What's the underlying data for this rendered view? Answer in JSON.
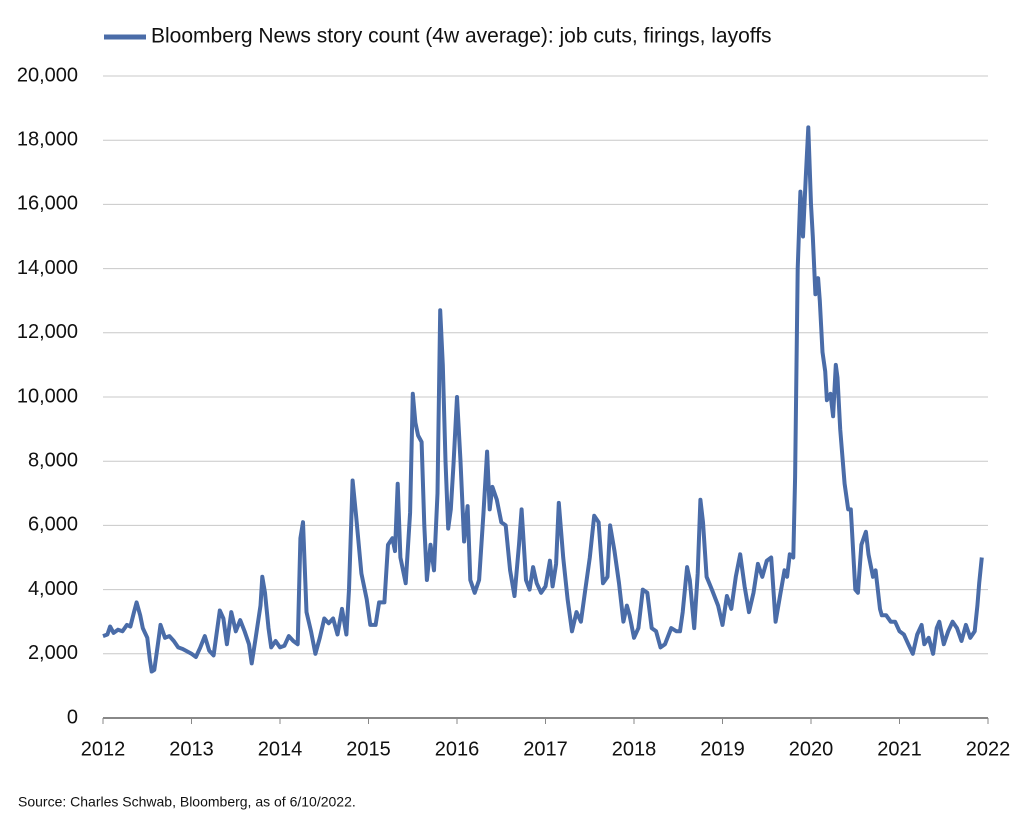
{
  "chart_data": {
    "type": "line",
    "source": "Source: Charles Schwab, Bloomberg, as of 6/10/2022.",
    "legend": "top",
    "grid": true,
    "xlim": [
      2012,
      2022
    ],
    "xticks": [
      2012,
      2013,
      2014,
      2015,
      2016,
      2017,
      2018,
      2019,
      2020,
      2021,
      2022
    ],
    "ylim": [
      0,
      20000
    ],
    "yticks": [
      0,
      {
        "value": 2000,
        "label": "2,000"
      },
      {
        "value": 4000,
        "label": "4,000"
      },
      {
        "value": 6000,
        "label": "6,000"
      },
      {
        "value": 8000,
        "label": "8,000"
      },
      {
        "value": 10000,
        "label": "10,000"
      },
      {
        "value": 12000,
        "label": "12,000"
      },
      {
        "value": 14000,
        "label": "14,000"
      },
      {
        "value": 16000,
        "label": "16,000"
      },
      {
        "value": 18000,
        "label": "18,000"
      },
      {
        "value": 20000,
        "label": "20,000"
      }
    ],
    "x": [
      2012.0,
      2012.05,
      2012.08,
      2012.12,
      2012.17,
      2012.22,
      2012.27,
      2012.31,
      2012.35,
      2012.38,
      2012.42,
      2012.45,
      2012.5,
      2012.53,
      2012.55,
      2012.58,
      2012.62,
      2012.65,
      2012.7,
      2012.75,
      2012.8,
      2012.85,
      2012.9,
      2013.0,
      2013.05,
      2013.1,
      2013.15,
      2013.2,
      2013.25,
      2013.32,
      2013.36,
      2013.4,
      2013.45,
      2013.5,
      2013.55,
      2013.6,
      2013.65,
      2013.68,
      2013.72,
      2013.78,
      2013.8,
      2013.83,
      2013.87,
      2013.9,
      2013.95,
      2014.0,
      2014.05,
      2014.1,
      2014.15,
      2014.2,
      2014.23,
      2014.26,
      2014.3,
      2014.35,
      2014.4,
      2014.45,
      2014.5,
      2014.55,
      2014.6,
      2014.65,
      2014.7,
      2014.75,
      2014.78,
      2014.82,
      2014.86,
      2014.92,
      2014.98,
      2015.02,
      2015.08,
      2015.12,
      2015.18,
      2015.22,
      2015.27,
      2015.3,
      2015.33,
      2015.36,
      2015.42,
      2015.47,
      2015.5,
      2015.53,
      2015.56,
      2015.6,
      2015.63,
      2015.66,
      2015.7,
      2015.74,
      2015.78,
      2015.81,
      2015.84,
      2015.87,
      2015.9,
      2015.93,
      2015.96,
      2016.0,
      2016.04,
      2016.08,
      2016.12,
      2016.15,
      2016.2,
      2016.25,
      2016.3,
      2016.34,
      2016.37,
      2016.4,
      2016.45,
      2016.5,
      2016.55,
      2016.6,
      2016.65,
      2016.7,
      2016.73,
      2016.78,
      2016.82,
      2016.86,
      2016.9,
      2016.95,
      2017.0,
      2017.05,
      2017.08,
      2017.12,
      2017.15,
      2017.2,
      2017.25,
      2017.3,
      2017.35,
      2017.4,
      2017.45,
      2017.5,
      2017.55,
      2017.6,
      2017.65,
      2017.7,
      2017.73,
      2017.78,
      2017.83,
      2017.88,
      2017.92,
      2017.95,
      2018.0,
      2018.05,
      2018.1,
      2018.15,
      2018.2,
      2018.25,
      2018.3,
      2018.35,
      2018.42,
      2018.48,
      2018.52,
      2018.55,
      2018.6,
      2018.63,
      2018.68,
      2018.72,
      2018.75,
      2018.78,
      2018.82,
      2018.88,
      2018.95,
      2019.0,
      2019.05,
      2019.1,
      2019.15,
      2019.2,
      2019.25,
      2019.3,
      2019.35,
      2019.4,
      2019.45,
      2019.5,
      2019.55,
      2019.6,
      2019.65,
      2019.7,
      2019.73,
      2019.76,
      2019.8,
      2019.82,
      2019.85,
      2019.88,
      2019.91,
      2019.94,
      2019.97,
      2020.0,
      2020.02,
      2020.05,
      2020.08,
      2020.1,
      2020.13,
      2020.16,
      2020.18,
      2020.22,
      2020.25,
      2020.28,
      2020.3,
      2020.33,
      2020.38,
      2020.42,
      2020.45,
      2020.5,
      2020.53,
      2020.57,
      2020.62,
      2020.65,
      2020.7,
      2020.73,
      2020.78,
      2020.8,
      2020.85,
      2020.9,
      2020.95,
      2021.0,
      2021.05,
      2021.1,
      2021.15,
      2021.2,
      2021.25,
      2021.28,
      2021.33,
      2021.38,
      2021.42,
      2021.45,
      2021.5,
      2021.55,
      2021.6,
      2021.65,
      2021.7,
      2021.75,
      2021.8,
      2021.85,
      2021.88,
      2021.9,
      2021.93
    ],
    "series": [
      {
        "name": "Bloomberg News story count (4w average): job cuts, firings, layoffs",
        "color": "#4a6ca8",
        "values": [
          2550,
          2600,
          2850,
          2650,
          2750,
          2700,
          2900,
          2850,
          3300,
          3600,
          3200,
          2800,
          2500,
          1800,
          1450,
          1500,
          2300,
          2900,
          2500,
          2550,
          2400,
          2200,
          2150,
          2000,
          1900,
          2200,
          2550,
          2100,
          1950,
          3350,
          3100,
          2300,
          3300,
          2700,
          3050,
          2700,
          2300,
          1700,
          2400,
          3500,
          4400,
          3900,
          2800,
          2200,
          2400,
          2200,
          2250,
          2550,
          2400,
          2300,
          5600,
          6100,
          3300,
          2700,
          2000,
          2500,
          3100,
          2950,
          3100,
          2600,
          3400,
          2600,
          4000,
          7400,
          6300,
          4500,
          3700,
          2900,
          2900,
          3600,
          3600,
          5400,
          5600,
          5200,
          7300,
          5000,
          4200,
          6400,
          10100,
          9200,
          8800,
          8600,
          6000,
          4300,
          5400,
          4600,
          7000,
          12700,
          11000,
          8000,
          5900,
          6500,
          7900,
          10000,
          8000,
          5500,
          6600,
          4300,
          3900,
          4300,
          6400,
          8300,
          6500,
          7200,
          6800,
          6100,
          6000,
          4600,
          3800,
          5400,
          6500,
          4300,
          4000,
          4700,
          4200,
          3900,
          4100,
          4900,
          4100,
          4800,
          6700,
          5000,
          3700,
          2700,
          3300,
          3000,
          4000,
          5000,
          6300,
          6100,
          4200,
          4400,
          6000,
          5200,
          4200,
          3000,
          3500,
          3200,
          2500,
          2800,
          4000,
          3900,
          2800,
          2700,
          2200,
          2300,
          2800,
          2700,
          2700,
          3300,
          4700,
          4300,
          2800,
          4500,
          6800,
          6100,
          4400,
          4000,
          3500,
          2900,
          3800,
          3400,
          4400,
          5100,
          4100,
          3300,
          3900,
          4800,
          4400,
          4900,
          5000,
          3000,
          3800,
          4600,
          4400,
          5100,
          5000,
          7500,
          14000,
          16400,
          15000,
          16800,
          18400,
          16000,
          15000,
          13200,
          13700,
          13000,
          11400,
          10800,
          9900,
          10100,
          9400,
          11000,
          10600,
          9000,
          7300,
          6500,
          6500,
          4000,
          3900,
          5400,
          5800,
          5100,
          4400,
          4600,
          3400,
          3200,
          3200,
          3000,
          3000,
          2700,
          2600,
          2300,
          2000,
          2600,
          2900,
          2300,
          2500,
          2000,
          2800,
          3000,
          2300,
          2700,
          3000,
          2800,
          2400,
          2900,
          2500,
          2700,
          3500,
          4200,
          5000
        ]
      }
    ]
  }
}
